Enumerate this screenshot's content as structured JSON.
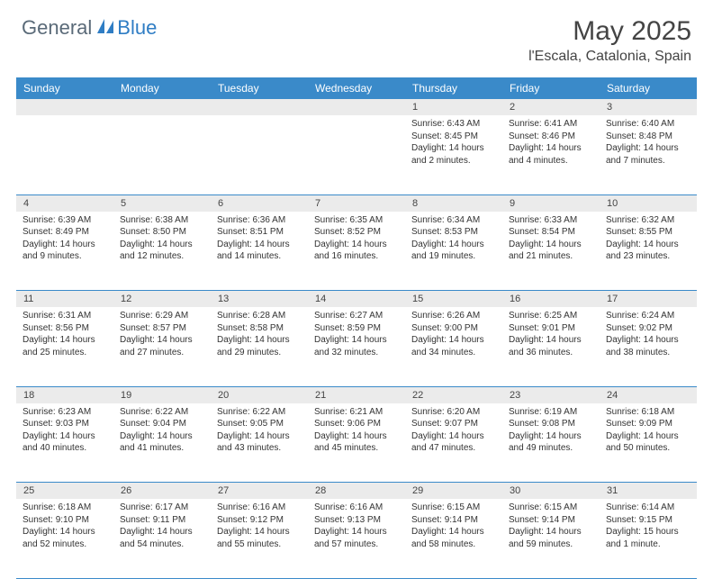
{
  "logo": {
    "part1": "General",
    "part2": "Blue"
  },
  "title": "May 2025",
  "location": "l'Escala, Catalonia, Spain",
  "colors": {
    "header_bg": "#3a8ac9",
    "daynum_bg": "#ebebeb",
    "border": "#3a8ac9",
    "text": "#333333"
  },
  "weekdays": [
    "Sunday",
    "Monday",
    "Tuesday",
    "Wednesday",
    "Thursday",
    "Friday",
    "Saturday"
  ],
  "weeks": [
    {
      "nums": [
        "",
        "",
        "",
        "",
        "1",
        "2",
        "3"
      ],
      "cells": [
        null,
        null,
        null,
        null,
        {
          "sunrise": "Sunrise: 6:43 AM",
          "sunset": "Sunset: 8:45 PM",
          "daylight": "Daylight: 14 hours and 2 minutes."
        },
        {
          "sunrise": "Sunrise: 6:41 AM",
          "sunset": "Sunset: 8:46 PM",
          "daylight": "Daylight: 14 hours and 4 minutes."
        },
        {
          "sunrise": "Sunrise: 6:40 AM",
          "sunset": "Sunset: 8:48 PM",
          "daylight": "Daylight: 14 hours and 7 minutes."
        }
      ]
    },
    {
      "nums": [
        "4",
        "5",
        "6",
        "7",
        "8",
        "9",
        "10"
      ],
      "cells": [
        {
          "sunrise": "Sunrise: 6:39 AM",
          "sunset": "Sunset: 8:49 PM",
          "daylight": "Daylight: 14 hours and 9 minutes."
        },
        {
          "sunrise": "Sunrise: 6:38 AM",
          "sunset": "Sunset: 8:50 PM",
          "daylight": "Daylight: 14 hours and 12 minutes."
        },
        {
          "sunrise": "Sunrise: 6:36 AM",
          "sunset": "Sunset: 8:51 PM",
          "daylight": "Daylight: 14 hours and 14 minutes."
        },
        {
          "sunrise": "Sunrise: 6:35 AM",
          "sunset": "Sunset: 8:52 PM",
          "daylight": "Daylight: 14 hours and 16 minutes."
        },
        {
          "sunrise": "Sunrise: 6:34 AM",
          "sunset": "Sunset: 8:53 PM",
          "daylight": "Daylight: 14 hours and 19 minutes."
        },
        {
          "sunrise": "Sunrise: 6:33 AM",
          "sunset": "Sunset: 8:54 PM",
          "daylight": "Daylight: 14 hours and 21 minutes."
        },
        {
          "sunrise": "Sunrise: 6:32 AM",
          "sunset": "Sunset: 8:55 PM",
          "daylight": "Daylight: 14 hours and 23 minutes."
        }
      ]
    },
    {
      "nums": [
        "11",
        "12",
        "13",
        "14",
        "15",
        "16",
        "17"
      ],
      "cells": [
        {
          "sunrise": "Sunrise: 6:31 AM",
          "sunset": "Sunset: 8:56 PM",
          "daylight": "Daylight: 14 hours and 25 minutes."
        },
        {
          "sunrise": "Sunrise: 6:29 AM",
          "sunset": "Sunset: 8:57 PM",
          "daylight": "Daylight: 14 hours and 27 minutes."
        },
        {
          "sunrise": "Sunrise: 6:28 AM",
          "sunset": "Sunset: 8:58 PM",
          "daylight": "Daylight: 14 hours and 29 minutes."
        },
        {
          "sunrise": "Sunrise: 6:27 AM",
          "sunset": "Sunset: 8:59 PM",
          "daylight": "Daylight: 14 hours and 32 minutes."
        },
        {
          "sunrise": "Sunrise: 6:26 AM",
          "sunset": "Sunset: 9:00 PM",
          "daylight": "Daylight: 14 hours and 34 minutes."
        },
        {
          "sunrise": "Sunrise: 6:25 AM",
          "sunset": "Sunset: 9:01 PM",
          "daylight": "Daylight: 14 hours and 36 minutes."
        },
        {
          "sunrise": "Sunrise: 6:24 AM",
          "sunset": "Sunset: 9:02 PM",
          "daylight": "Daylight: 14 hours and 38 minutes."
        }
      ]
    },
    {
      "nums": [
        "18",
        "19",
        "20",
        "21",
        "22",
        "23",
        "24"
      ],
      "cells": [
        {
          "sunrise": "Sunrise: 6:23 AM",
          "sunset": "Sunset: 9:03 PM",
          "daylight": "Daylight: 14 hours and 40 minutes."
        },
        {
          "sunrise": "Sunrise: 6:22 AM",
          "sunset": "Sunset: 9:04 PM",
          "daylight": "Daylight: 14 hours and 41 minutes."
        },
        {
          "sunrise": "Sunrise: 6:22 AM",
          "sunset": "Sunset: 9:05 PM",
          "daylight": "Daylight: 14 hours and 43 minutes."
        },
        {
          "sunrise": "Sunrise: 6:21 AM",
          "sunset": "Sunset: 9:06 PM",
          "daylight": "Daylight: 14 hours and 45 minutes."
        },
        {
          "sunrise": "Sunrise: 6:20 AM",
          "sunset": "Sunset: 9:07 PM",
          "daylight": "Daylight: 14 hours and 47 minutes."
        },
        {
          "sunrise": "Sunrise: 6:19 AM",
          "sunset": "Sunset: 9:08 PM",
          "daylight": "Daylight: 14 hours and 49 minutes."
        },
        {
          "sunrise": "Sunrise: 6:18 AM",
          "sunset": "Sunset: 9:09 PM",
          "daylight": "Daylight: 14 hours and 50 minutes."
        }
      ]
    },
    {
      "nums": [
        "25",
        "26",
        "27",
        "28",
        "29",
        "30",
        "31"
      ],
      "cells": [
        {
          "sunrise": "Sunrise: 6:18 AM",
          "sunset": "Sunset: 9:10 PM",
          "daylight": "Daylight: 14 hours and 52 minutes."
        },
        {
          "sunrise": "Sunrise: 6:17 AM",
          "sunset": "Sunset: 9:11 PM",
          "daylight": "Daylight: 14 hours and 54 minutes."
        },
        {
          "sunrise": "Sunrise: 6:16 AM",
          "sunset": "Sunset: 9:12 PM",
          "daylight": "Daylight: 14 hours and 55 minutes."
        },
        {
          "sunrise": "Sunrise: 6:16 AM",
          "sunset": "Sunset: 9:13 PM",
          "daylight": "Daylight: 14 hours and 57 minutes."
        },
        {
          "sunrise": "Sunrise: 6:15 AM",
          "sunset": "Sunset: 9:14 PM",
          "daylight": "Daylight: 14 hours and 58 minutes."
        },
        {
          "sunrise": "Sunrise: 6:15 AM",
          "sunset": "Sunset: 9:14 PM",
          "daylight": "Daylight: 14 hours and 59 minutes."
        },
        {
          "sunrise": "Sunrise: 6:14 AM",
          "sunset": "Sunset: 9:15 PM",
          "daylight": "Daylight: 15 hours and 1 minute."
        }
      ]
    }
  ]
}
